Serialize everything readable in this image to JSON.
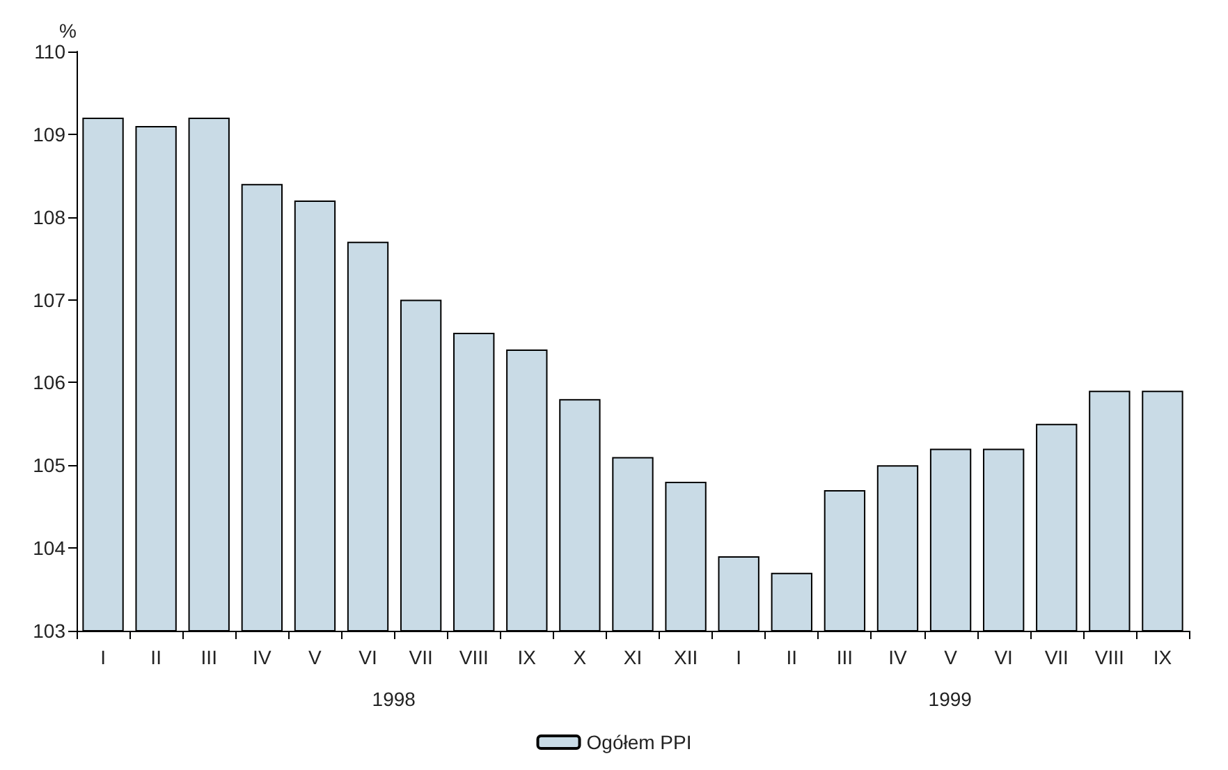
{
  "chart_data": {
    "type": "bar",
    "ylabel": "%",
    "categories": [
      "I",
      "II",
      "III",
      "IV",
      "V",
      "VI",
      "VII",
      "VIII",
      "IX",
      "X",
      "XI",
      "XII",
      "I",
      "II",
      "III",
      "IV",
      "V",
      "VI",
      "VII",
      "VIII",
      "IX"
    ],
    "series": [
      {
        "name": "Ogółem PPI",
        "color": "#c9dbe6",
        "values": [
          109.2,
          109.1,
          109.2,
          108.4,
          108.2,
          107.7,
          107.0,
          106.6,
          106.4,
          105.8,
          105.1,
          104.8,
          103.9,
          103.7,
          104.7,
          105.0,
          105.2,
          105.2,
          105.5,
          105.9,
          105.9
        ]
      }
    ],
    "ylim": [
      103,
      110
    ],
    "yticks": [
      103,
      104,
      105,
      106,
      107,
      108,
      109,
      110
    ],
    "annotations": [
      "1998",
      "1999"
    ],
    "grid": false,
    "legend": "bottom"
  }
}
